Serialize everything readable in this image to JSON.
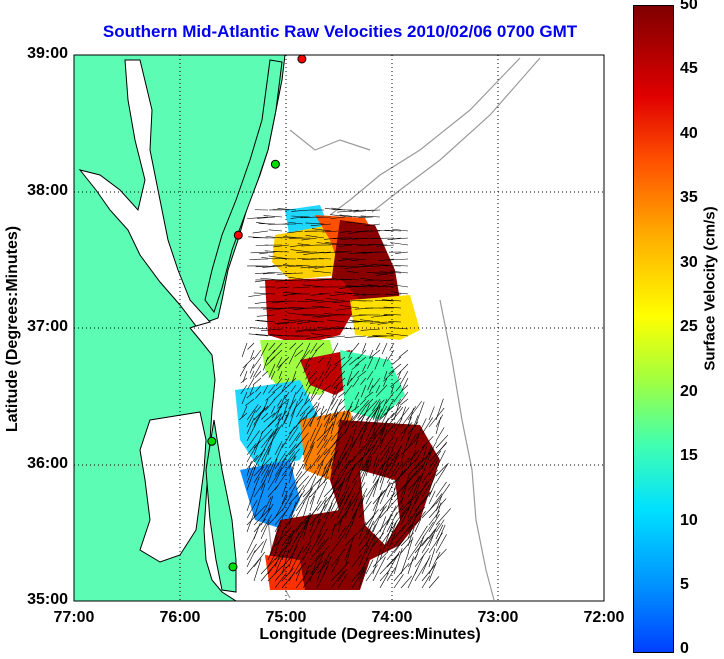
{
  "title": "Southern Mid-Atlantic Raw Velocities 2010/02/06 0700 GMT",
  "xaxis": {
    "label": "Longitude (Degrees:Minutes)",
    "ticks": [
      "77:00",
      "76:00",
      "75:00",
      "74:00",
      "73:00",
      "72:00"
    ]
  },
  "yaxis": {
    "label": "Latitude (Degrees:Minutes)",
    "ticks": [
      "39:00",
      "38:00",
      "37:00",
      "36:00",
      "35:00"
    ]
  },
  "colorbar": {
    "label": "Surface Velocity (cm/s)",
    "ticks": [
      "50",
      "45",
      "40",
      "35",
      "30",
      "25",
      "20",
      "15",
      "10",
      "5",
      "0"
    ]
  },
  "colors": {
    "land": "#5cfcb4",
    "title": "#0000ee",
    "coast": "#000000",
    "bathymetry": "#9a9a9a"
  },
  "stations": [
    {
      "lon": -74.85,
      "lat": 39.05,
      "color": "#ff0000"
    },
    {
      "lon": -75.1,
      "lat": 38.2,
      "color": "#00dd00"
    },
    {
      "lon": -75.45,
      "lat": 37.68,
      "color": "#ff0000"
    },
    {
      "lon": -75.7,
      "lat": 36.17,
      "color": "#00dd00"
    },
    {
      "lon": -75.5,
      "lat": 35.25,
      "color": "#00dd00"
    }
  ]
}
